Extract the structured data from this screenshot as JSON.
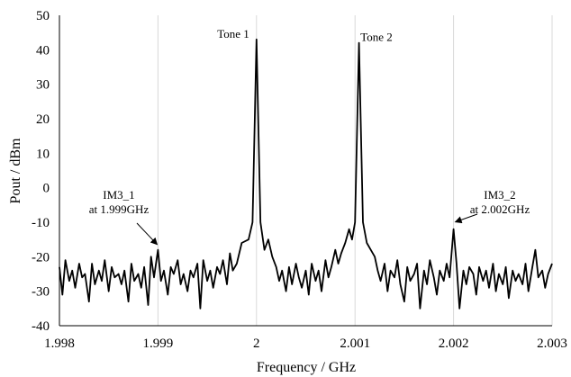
{
  "chart_data": {
    "type": "line",
    "title": "",
    "xlabel": "Frequency / GHz",
    "ylabel": "Pout / dBm",
    "xlim": [
      1.998,
      2.003
    ],
    "ylim": [
      -40,
      50
    ],
    "x_ticks": [
      "1.998",
      "1.999",
      "2",
      "2.001",
      "2.002",
      "2.003"
    ],
    "y_ticks": [
      "-40",
      "-30",
      "-20",
      "-10",
      "0",
      "10",
      "20",
      "30",
      "40",
      "50"
    ],
    "grid": "vertical",
    "legend": "none",
    "series": [
      {
        "color": "#000000",
        "x": [
          1.998,
          1.99803,
          1.99806,
          1.9981,
          1.99813,
          1.99816,
          1.9982,
          1.99823,
          1.99826,
          1.9983,
          1.99833,
          1.99836,
          1.9984,
          1.99843,
          1.99846,
          1.9985,
          1.99853,
          1.99856,
          1.9986,
          1.99863,
          1.99866,
          1.9987,
          1.99873,
          1.99876,
          1.9988,
          1.99883,
          1.99886,
          1.9989,
          1.99893,
          1.99896,
          1.999,
          1.99903,
          1.99906,
          1.9991,
          1.99913,
          1.99916,
          1.9992,
          1.99923,
          1.99926,
          1.9993,
          1.99933,
          1.99936,
          1.9994,
          1.99943,
          1.99946,
          1.9995,
          1.99953,
          1.99956,
          1.9996,
          1.99963,
          1.99966,
          1.9997,
          1.99973,
          1.99976,
          1.9998,
          1.99985,
          1.99992,
          1.99996,
          2.0,
          2.00004,
          2.00008,
          2.00012,
          2.00016,
          2.0002,
          2.00023,
          2.00026,
          2.0003,
          2.00033,
          2.00036,
          2.0004,
          2.00043,
          2.00046,
          2.0005,
          2.00053,
          2.00056,
          2.0006,
          2.00063,
          2.00066,
          2.0007,
          2.00073,
          2.00076,
          2.0008,
          2.00083,
          2.00086,
          2.0009,
          2.00094,
          2.00097,
          2.001,
          2.00104,
          2.00108,
          2.00112,
          2.00116,
          2.0012,
          2.00123,
          2.00126,
          2.0013,
          2.00133,
          2.00136,
          2.0014,
          2.00143,
          2.00146,
          2.0015,
          2.00153,
          2.00156,
          2.0016,
          2.00163,
          2.00166,
          2.0017,
          2.00173,
          2.00176,
          2.0018,
          2.00183,
          2.00186,
          2.0019,
          2.00193,
          2.00196,
          2.002,
          2.00203,
          2.00206,
          2.0021,
          2.00213,
          2.00216,
          2.0022,
          2.00223,
          2.00226,
          2.0023,
          2.00233,
          2.00236,
          2.0024,
          2.00243,
          2.00246,
          2.0025,
          2.00253,
          2.00256,
          2.0026,
          2.00263,
          2.00266,
          2.0027,
          2.00273,
          2.00276,
          2.0028,
          2.00283,
          2.00286,
          2.0029,
          2.00293,
          2.00296,
          2.003
        ],
        "y": [
          -23,
          -31,
          -21,
          -27,
          -24,
          -29,
          -22,
          -26,
          -25,
          -33,
          -22,
          -28,
          -24,
          -27,
          -21,
          -30,
          -23,
          -26,
          -25,
          -28,
          -24,
          -33,
          -22,
          -27,
          -25,
          -29,
          -23,
          -34,
          -20,
          -26,
          -18,
          -27,
          -24,
          -31,
          -23,
          -25,
          -21,
          -28,
          -25,
          -30,
          -24,
          -26,
          -22,
          -35,
          -21,
          -27,
          -24,
          -29,
          -23,
          -25,
          -21,
          -28,
          -19,
          -24,
          -22,
          -16,
          -15,
          -10,
          43,
          -10,
          -18,
          -15,
          -20,
          -23,
          -27,
          -24,
          -30,
          -23,
          -28,
          -22,
          -26,
          -29,
          -24,
          -31,
          -22,
          -27,
          -24,
          -30,
          -21,
          -26,
          -23,
          -18,
          -22,
          -19,
          -16,
          -12,
          -15,
          -10,
          42,
          -10,
          -16,
          -18,
          -20,
          -24,
          -27,
          -22,
          -30,
          -24,
          -26,
          -21,
          -28,
          -33,
          -23,
          -27,
          -25,
          -22,
          -35,
          -24,
          -28,
          -21,
          -26,
          -31,
          -24,
          -27,
          -22,
          -26,
          -12,
          -22,
          -35,
          -24,
          -28,
          -23,
          -25,
          -31,
          -23,
          -27,
          -24,
          -29,
          -22,
          -30,
          -25,
          -28,
          -23,
          -32,
          -24,
          -27,
          -25,
          -28,
          -22,
          -30,
          -23,
          -18,
          -26,
          -24,
          -29,
          -25,
          -22
        ]
      }
    ],
    "annotations": [
      {
        "text": "Tone 1",
        "x": 2.0,
        "y": 43
      },
      {
        "text": "Tone 2",
        "x": 2.001,
        "y": 42
      },
      {
        "lines": [
          "IM3_1",
          "at 1.999GHz"
        ],
        "x": 1.999,
        "y": -18
      },
      {
        "lines": [
          "IM3_2",
          "at 2.002GHz"
        ],
        "x": 2.002,
        "y": -12
      }
    ]
  }
}
